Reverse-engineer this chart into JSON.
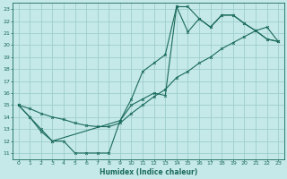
{
  "xlabel": "Humidex (Indice chaleur)",
  "bg_color": "#c5e8e8",
  "grid_color": "#9ecece",
  "line_color": "#1a6b5a",
  "xlim": [
    -0.5,
    23.5
  ],
  "ylim": [
    10.5,
    23.5
  ],
  "xticks": [
    0,
    1,
    2,
    3,
    4,
    5,
    6,
    7,
    8,
    9,
    10,
    11,
    12,
    13,
    14,
    15,
    16,
    17,
    18,
    19,
    20,
    21,
    22,
    23
  ],
  "yticks": [
    11,
    12,
    13,
    14,
    15,
    16,
    17,
    18,
    19,
    20,
    21,
    22,
    23
  ],
  "line1_x": [
    0,
    1,
    2,
    3,
    4,
    5,
    6,
    7,
    8,
    9,
    10,
    11,
    12,
    13,
    14,
    15,
    16,
    17,
    18,
    19,
    20,
    21,
    22,
    23
  ],
  "line1_y": [
    15,
    14,
    13,
    12,
    12,
    11,
    11,
    11,
    11,
    13.7,
    15.5,
    17.8,
    18.5,
    19.2,
    23.2,
    23.2,
    22.2,
    21.5,
    22.5,
    22.5,
    21.8,
    21.2,
    20.5,
    20.3
  ],
  "line2_x": [
    0,
    1,
    2,
    3,
    9,
    10,
    11,
    12,
    13,
    14,
    15,
    16,
    17,
    18,
    19,
    20,
    21,
    22,
    23
  ],
  "line2_y": [
    15,
    14,
    12.8,
    12,
    13.7,
    15,
    15.5,
    16,
    15.8,
    23.2,
    21.1,
    22.2,
    21.5,
    22.5,
    22.5,
    21.8,
    21.2,
    20.5,
    20.3
  ],
  "line3_x": [
    0,
    1,
    2,
    3,
    4,
    5,
    6,
    7,
    8,
    9,
    10,
    11,
    12,
    13,
    14,
    15,
    16,
    17,
    18,
    19,
    20,
    21,
    22,
    23
  ],
  "line3_y": [
    15,
    14.7,
    14.3,
    14.0,
    13.8,
    13.5,
    13.3,
    13.2,
    13.2,
    13.5,
    14.3,
    15.0,
    15.7,
    16.3,
    17.3,
    17.8,
    18.5,
    19.0,
    19.7,
    20.2,
    20.7,
    21.2,
    21.5,
    20.3
  ]
}
